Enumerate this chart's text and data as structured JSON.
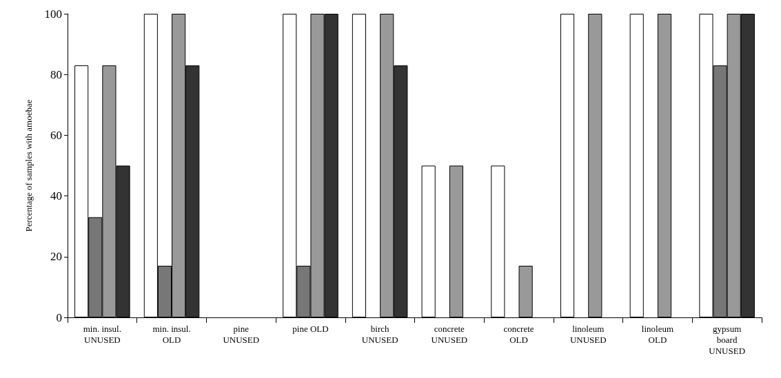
{
  "chart_data": {
    "type": "bar",
    "ylabel": "Percentage of samples with amoebae",
    "categories": [
      "min. insul.\nUNUSED",
      "min. insul.\nOLD",
      "pine\nUNUSED",
      "pine OLD",
      "birch\nUNUSED",
      "concrete\nUNUSED",
      "concrete\nOLD",
      "linoleum\nUNUSED",
      "linoleum\nOLD",
      "gypsum\nboard\nUNUSED"
    ],
    "series": [
      {
        "color": "#ffffff",
        "values": [
          83,
          100,
          0,
          100,
          100,
          50,
          50,
          100,
          100,
          100
        ]
      },
      {
        "color": "#777777",
        "values": [
          33,
          17,
          0,
          17,
          0,
          0,
          0,
          0,
          0,
          83
        ]
      },
      {
        "color": "#999999",
        "values": [
          83,
          100,
          0,
          100,
          100,
          50,
          17,
          100,
          100,
          100
        ]
      },
      {
        "color": "#333333",
        "values": [
          50,
          83,
          0,
          100,
          83,
          0,
          0,
          0,
          0,
          100
        ]
      }
    ],
    "ylim": [
      0,
      100
    ],
    "yticks": [
      0,
      20,
      40,
      60,
      80,
      100
    ],
    "grid": false
  }
}
